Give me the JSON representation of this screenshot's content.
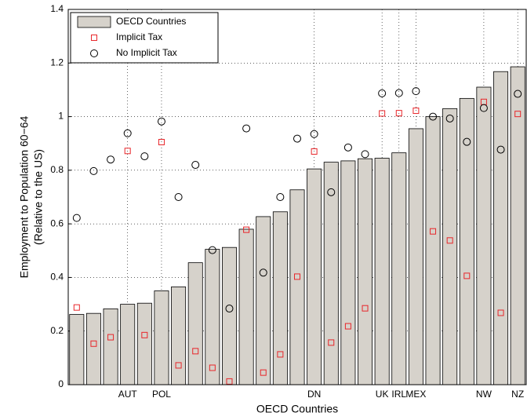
{
  "chart_data": {
    "type": "bar",
    "x_label": "OECD Countries",
    "y_label": [
      "Employment to Population 60−64",
      "(Relative to the US)"
    ],
    "categories": [
      null,
      null,
      null,
      "AUT",
      null,
      "POL",
      null,
      null,
      null,
      null,
      null,
      null,
      null,
      null,
      "DN",
      null,
      null,
      null,
      "UK",
      "IRL",
      "MEX",
      null,
      null,
      null,
      "NW",
      null,
      "NZ"
    ],
    "series": [
      {
        "name": "OECD Countries",
        "kind": "bar",
        "color": "#d6d2cb",
        "values": [
          0.262,
          0.266,
          0.283,
          0.3,
          0.304,
          0.35,
          0.365,
          0.455,
          0.505,
          0.512,
          0.58,
          0.627,
          0.645,
          0.727,
          0.805,
          0.83,
          0.835,
          0.843,
          0.845,
          0.865,
          0.955,
          1.0,
          1.03,
          1.068,
          1.11,
          1.168,
          1.186
        ]
      },
      {
        "name": "Implicit Tax",
        "kind": "square",
        "color": "#e8262a",
        "values": [
          0.288,
          0.153,
          0.177,
          0.872,
          0.185,
          0.905,
          0.072,
          0.125,
          0.063,
          0.012,
          0.578,
          0.045,
          0.113,
          0.403,
          0.87,
          0.157,
          0.218,
          0.285,
          1.012,
          1.013,
          1.022,
          0.572,
          0.538,
          0.406,
          1.055,
          0.268,
          1.01
        ]
      },
      {
        "name": "No Implicit Tax",
        "kind": "circle",
        "color": "#000000",
        "values": [
          0.622,
          0.797,
          0.84,
          0.938,
          0.852,
          0.982,
          0.7,
          0.82,
          0.502,
          0.284,
          0.956,
          0.418,
          0.7,
          0.918,
          0.935,
          0.718,
          0.885,
          0.86,
          1.087,
          1.088,
          1.095,
          1.0,
          0.993,
          0.906,
          1.032,
          0.877,
          1.085
        ]
      }
    ],
    "ylim": [
      0,
      1.4
    ],
    "yticks": [
      0,
      0.2,
      0.4,
      0.6,
      0.8,
      1,
      1.2,
      1.4
    ],
    "grid": true,
    "legend": "top-left"
  }
}
